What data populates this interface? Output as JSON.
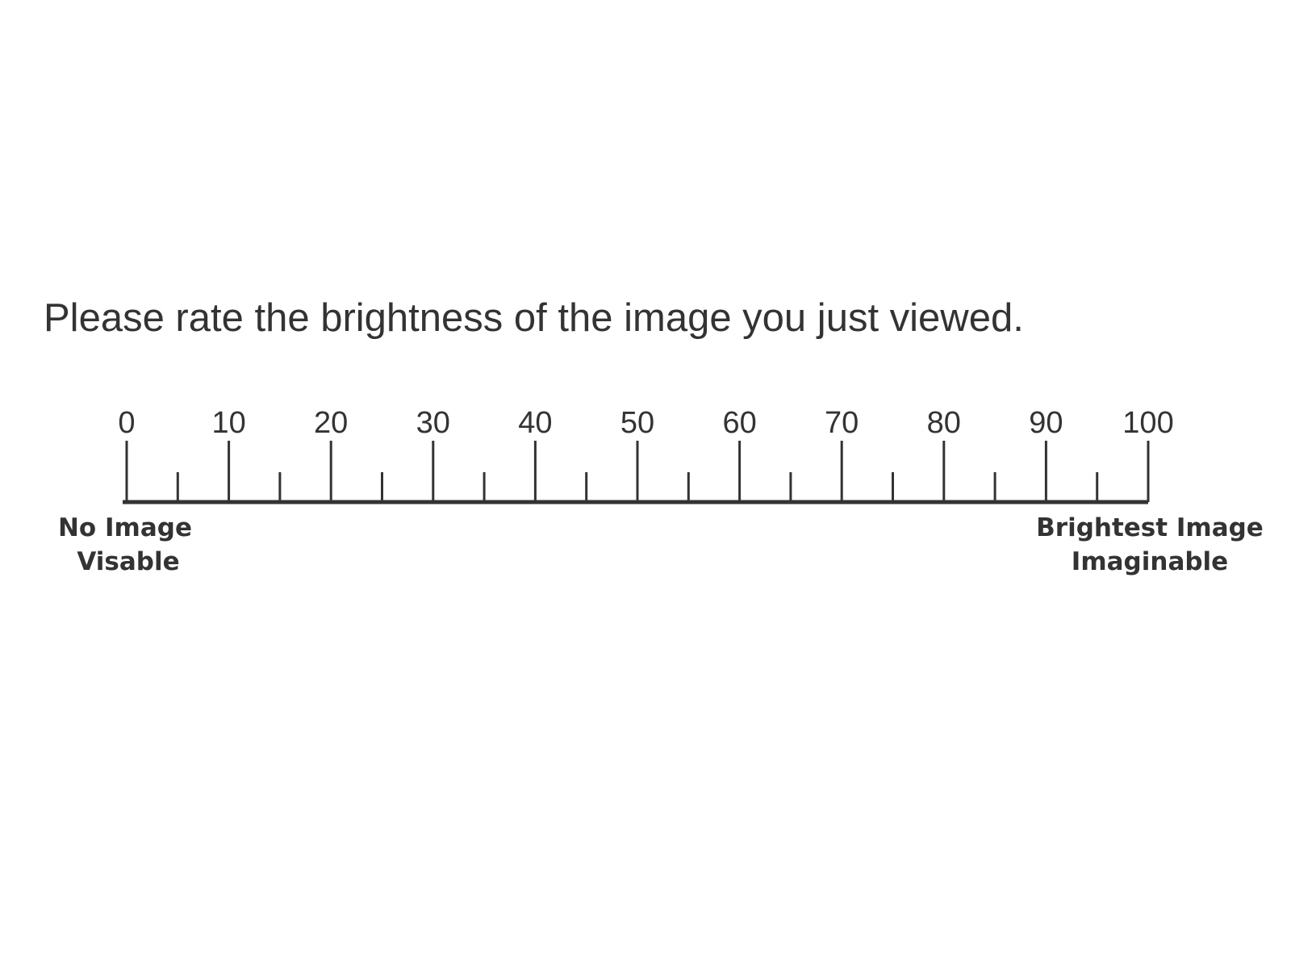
{
  "prompt": "Please rate the brightness of the image you just viewed.",
  "rating_scale": {
    "min": 0,
    "max": 100,
    "major_step": 10,
    "minor_step": 5,
    "tick_labels": [
      "0",
      "10",
      "20",
      "30",
      "40",
      "50",
      "60",
      "70",
      "80",
      "90",
      "100"
    ],
    "low_anchor": [
      "No Image",
      "Visable"
    ],
    "high_anchor": [
      "Brightest Image",
      "Imaginable"
    ]
  },
  "colors": {
    "text": "#333333",
    "line": "#333333",
    "background": "#ffffff"
  }
}
